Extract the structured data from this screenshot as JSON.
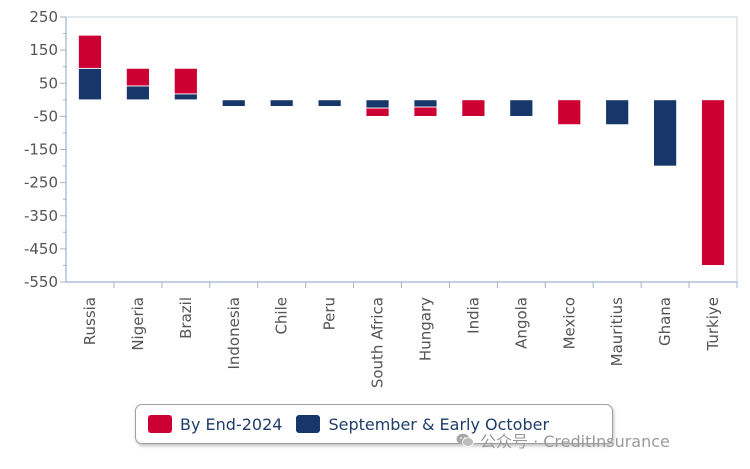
{
  "chart_data": {
    "type": "bar",
    "stacked": true,
    "categories": [
      "Russia",
      "Nigeria",
      "Brazil",
      "Indonesia",
      "Chile",
      "Peru",
      "South Africa",
      "Hungary",
      "India",
      "Angola",
      "Mexico",
      "Mauritius",
      "Ghana",
      "Turkiye"
    ],
    "series": [
      {
        "name": "September & Early October",
        "color": "#17376b",
        "values": [
          95,
          42,
          18,
          -20,
          -20,
          -20,
          -25,
          -22,
          0,
          -50,
          0,
          -75,
          -200,
          0
        ]
      },
      {
        "name": "By End-2024",
        "color": "#cc0033",
        "values": [
          100,
          53,
          77,
          0,
          0,
          0,
          -25,
          -28,
          -50,
          0,
          -75,
          0,
          0,
          -500
        ]
      }
    ],
    "ylim": [
      -550,
      250
    ],
    "yticks": [
      "250",
      "150",
      "50",
      "-50",
      "-150",
      "-250",
      "-350",
      "-450",
      "-550"
    ],
    "legend_position": "bottom",
    "grid": false
  },
  "legend": {
    "items": [
      {
        "label": "By End-2024",
        "color": "#cc0033"
      },
      {
        "label": "September & Early October",
        "color": "#17376b"
      }
    ]
  },
  "watermark": {
    "text": "公众号 · CreditInsurance",
    "icon": "wechat-icon"
  }
}
